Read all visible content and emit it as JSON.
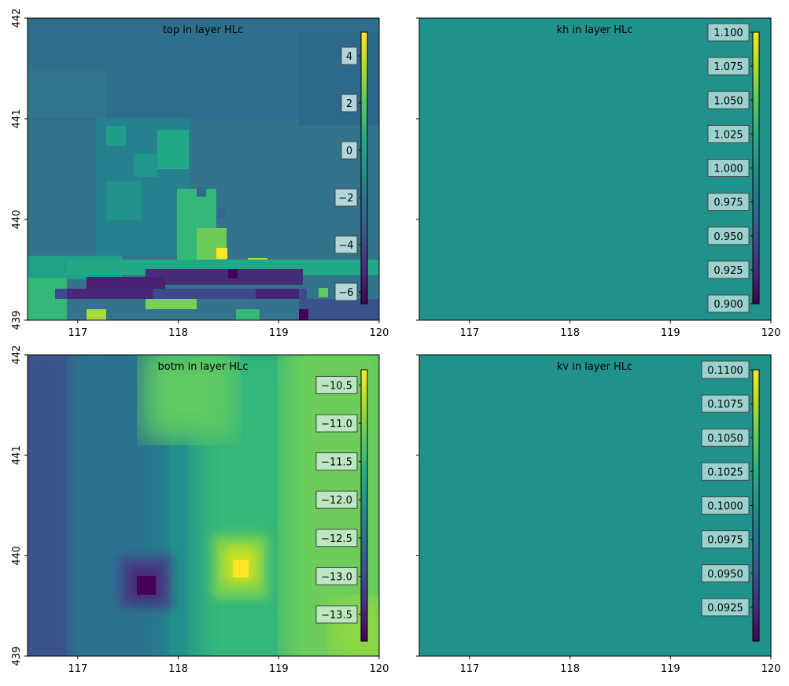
{
  "chart_data": [
    {
      "type": "heatmap",
      "title": "top in layer HLc",
      "xlim": [
        116.5,
        120
      ],
      "ylim": [
        439,
        442
      ],
      "xticks": [
        "117",
        "118",
        "119",
        "120"
      ],
      "yticks": [
        "439",
        "440",
        "441",
        "442"
      ],
      "show_yticklabels": true,
      "colorbar": {
        "vmin": -6.5,
        "vmax": 5,
        "tick_values": [
          4,
          2,
          0,
          -2,
          -4,
          -6
        ],
        "tick_labels": [
          "4",
          "2",
          "0",
          "−2",
          "−4",
          "−6"
        ]
      },
      "colors": {
        "background": "#33738b",
        "box": "#b9dcdc"
      }
    },
    {
      "type": "heatmap",
      "title": "kh in layer HLc",
      "xlim": [
        116.5,
        120
      ],
      "ylim": [
        439,
        442
      ],
      "xticks": [
        "117",
        "118",
        "119",
        "120"
      ],
      "yticks": [
        "439",
        "440",
        "441",
        "442"
      ],
      "show_yticklabels": false,
      "colorbar": {
        "vmin": 0.9,
        "vmax": 1.1,
        "tick_values": [
          1.1,
          1.075,
          1.05,
          1.025,
          1.0,
          0.975,
          0.95,
          0.925,
          0.9
        ],
        "tick_labels": [
          "1.100",
          "1.075",
          "1.050",
          "1.025",
          "1.000",
          "0.975",
          "0.950",
          "0.925",
          "0.900"
        ]
      },
      "colors": {
        "background": "#21918c",
        "box": "#a3d6d1"
      }
    },
    {
      "type": "heatmap",
      "title": "botm in layer HLc",
      "xlim": [
        116.5,
        120
      ],
      "ylim": [
        439,
        442
      ],
      "xticks": [
        "117",
        "118",
        "119",
        "120"
      ],
      "yticks": [
        "439",
        "440",
        "441",
        "442"
      ],
      "show_yticklabels": true,
      "colorbar": {
        "vmin": -13.85,
        "vmax": -10.3,
        "tick_values": [
          -10.5,
          -11.0,
          -11.5,
          -12.0,
          -12.5,
          -13.0,
          -13.5
        ],
        "tick_labels": [
          "−10.5",
          "−11.0",
          "−11.5",
          "−12.0",
          "−12.5",
          "−13.0",
          "−13.5"
        ]
      },
      "colors": {
        "background": "#45b97c",
        "box": "#c1e8c6"
      }
    },
    {
      "type": "heatmap",
      "title": "kv in layer HLc",
      "xlim": [
        116.5,
        120
      ],
      "ylim": [
        439,
        442
      ],
      "xticks": [
        "117",
        "118",
        "119",
        "120"
      ],
      "yticks": [
        "439",
        "440",
        "441",
        "442"
      ],
      "show_yticklabels": false,
      "colorbar": {
        "vmin": 0.09,
        "vmax": 0.11,
        "tick_values": [
          0.11,
          0.1075,
          0.105,
          0.1025,
          0.1,
          0.0975,
          0.095,
          0.0925
        ],
        "tick_labels": [
          "0.1100",
          "0.1075",
          "0.1050",
          "0.1025",
          "0.1000",
          "0.0975",
          "0.0950",
          "0.0925"
        ]
      },
      "colors": {
        "background": "#21918c",
        "box": "#a3d6d1"
      }
    }
  ]
}
